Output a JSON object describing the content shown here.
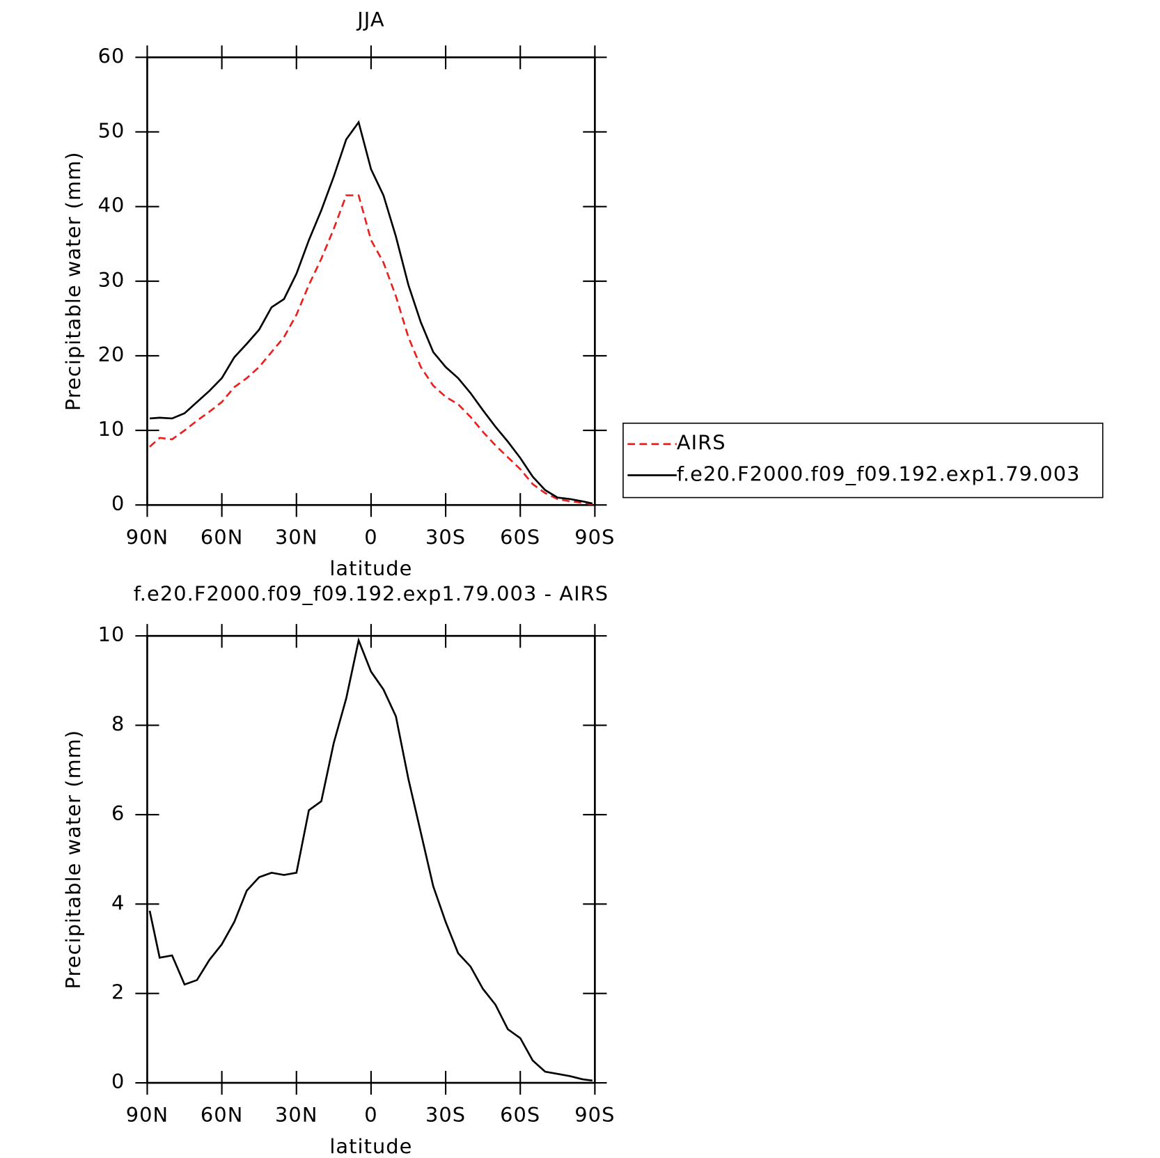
{
  "chart_data": [
    {
      "type": "line",
      "title": "JJA",
      "xlabel": "latitude",
      "ylabel": "Precipitable water (mm)",
      "x": [
        89,
        85,
        80,
        75,
        70,
        65,
        60,
        55,
        50,
        45,
        40,
        35,
        30,
        25,
        20,
        15,
        10,
        5,
        0,
        -5,
        -10,
        -15,
        -20,
        -25,
        -30,
        -35,
        -40,
        -45,
        -50,
        -55,
        -60,
        -65,
        -70,
        -75,
        -80,
        -85,
        -89
      ],
      "xlim": [
        90,
        -90
      ],
      "xticks": [
        {
          "value": 90,
          "label": "90N"
        },
        {
          "value": 60,
          "label": "60N"
        },
        {
          "value": 30,
          "label": "30N"
        },
        0,
        {
          "value": -30,
          "label": "30S"
        },
        {
          "value": -60,
          "label": "60S"
        },
        {
          "value": -90,
          "label": "90S"
        }
      ],
      "ylim": [
        0,
        60
      ],
      "yticks": [
        0,
        10,
        20,
        30,
        40,
        50,
        60
      ],
      "series": [
        {
          "name": "AIRS",
          "color": "#e8201e",
          "dash": true,
          "values": [
            7.8,
            9,
            8.8,
            10,
            11.3,
            12.5,
            13.8,
            15.8,
            17,
            18.5,
            20.5,
            22.5,
            25.5,
            29.5,
            33,
            37,
            41.5,
            41.5,
            35.5,
            32.5,
            28,
            22.5,
            18.5,
            16,
            14.5,
            13.5,
            11.8,
            9.8,
            8,
            6.4,
            4.8,
            2.8,
            1.6,
            0.8,
            0.5,
            0.3,
            0.1
          ]
        },
        {
          "name": "f.e20.F2000.f09_f09.192.exp1.79.003",
          "color": "#000000",
          "dash": false,
          "values": [
            11.6,
            11.7,
            11.6,
            12.3,
            13.8,
            15.3,
            17,
            19.8,
            21.6,
            23.5,
            26.5,
            27.6,
            31,
            35.5,
            39.5,
            44,
            49,
            51.3,
            45,
            41.5,
            36,
            29.5,
            24.5,
            20.5,
            18.5,
            17,
            15,
            12.7,
            10.5,
            8.5,
            6.3,
            3.8,
            2,
            1,
            0.8,
            0.5,
            0.2
          ]
        }
      ]
    },
    {
      "type": "line",
      "title": "f.e20.F2000.f09_f09.192.exp1.79.003 - AIRS",
      "xlabel": "latitude",
      "ylabel": "Precipitable water (mm)",
      "x": [
        89,
        85,
        80,
        75,
        70,
        65,
        60,
        55,
        50,
        45,
        40,
        35,
        30,
        25,
        20,
        15,
        10,
        5,
        0,
        -5,
        -10,
        -15,
        -20,
        -25,
        -30,
        -35,
        -40,
        -45,
        -50,
        -55,
        -60,
        -65,
        -70,
        -75,
        -80,
        -85,
        -89
      ],
      "xlim": [
        90,
        -90
      ],
      "xticks": [
        {
          "value": 90,
          "label": "90N"
        },
        {
          "value": 60,
          "label": "60N"
        },
        {
          "value": 30,
          "label": "30N"
        },
        0,
        {
          "value": -30,
          "label": "30S"
        },
        {
          "value": -60,
          "label": "60S"
        },
        {
          "value": -90,
          "label": "90S"
        }
      ],
      "ylim": [
        0,
        10
      ],
      "yticks": [
        0,
        2,
        4,
        6,
        8,
        10
      ],
      "color": "#000000",
      "values": [
        3.85,
        2.8,
        2.85,
        2.2,
        2.3,
        2.75,
        3.1,
        3.6,
        4.3,
        4.6,
        4.7,
        4.65,
        4.7,
        6.1,
        6.3,
        7.6,
        8.6,
        9.9,
        9.2,
        8.8,
        8.2,
        6.8,
        5.6,
        4.4,
        3.6,
        2.9,
        2.6,
        2.1,
        1.75,
        1.2,
        1,
        0.5,
        0.25,
        0.2,
        0.15,
        0.08,
        0.05
      ]
    }
  ]
}
